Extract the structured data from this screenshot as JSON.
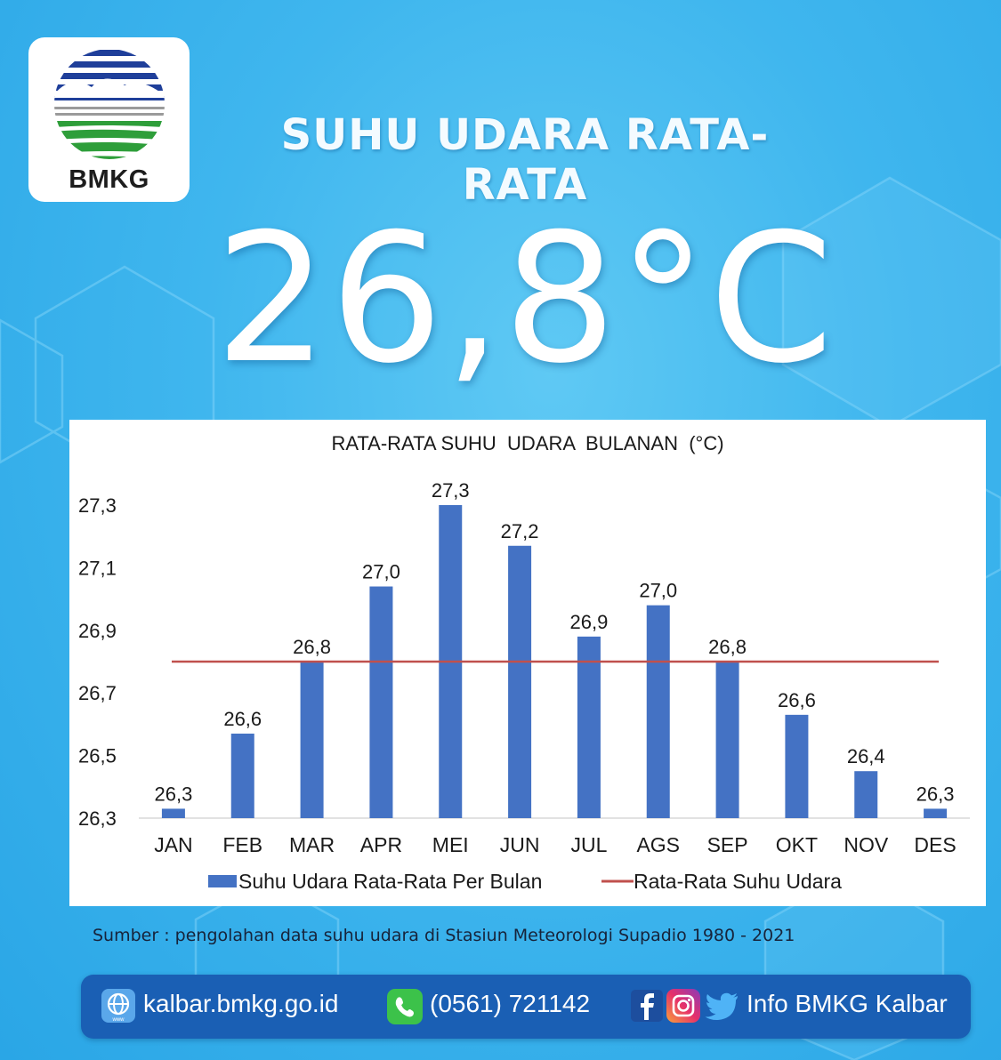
{
  "branding": {
    "logo_text": "BMKG",
    "headline": "SUHU UDARA RATA-RATA",
    "big_value": "26,8°C"
  },
  "source_note": "Sumber : pengolahan data suhu udara di Stasiun Meteorologi Supadio 1980 - 2021",
  "footer": {
    "website": "kalbar.bmkg.go.id",
    "phone": "(0561) 721142",
    "social": "Info BMKG Kalbar",
    "icons": [
      "globe-icon",
      "whatsapp-icon",
      "facebook-icon",
      "instagram-icon",
      "twitter-icon"
    ]
  },
  "colors": {
    "bar": "#4472c4",
    "average_line": "#c0504d",
    "footer_bar": "#1a5fb4"
  },
  "chart_data": {
    "type": "bar",
    "title": "RATA-RATA SUHU  UDARA  BULANAN  (°C)",
    "categories": [
      "JAN",
      "FEB",
      "MAR",
      "APR",
      "MEI",
      "JUN",
      "JUL",
      "AGS",
      "SEP",
      "OKT",
      "NOV",
      "DES"
    ],
    "series": [
      {
        "name": "Suhu Udara Rata-Rata Per Bulan",
        "type": "bar",
        "values": [
          26.33,
          26.57,
          26.8,
          27.04,
          27.3,
          27.17,
          26.88,
          26.98,
          26.8,
          26.63,
          26.45,
          26.33
        ],
        "labels": [
          "26,3",
          "26,6",
          "26,8",
          "27,0",
          "27,3",
          "27,2",
          "26,9",
          "27,0",
          "26,8",
          "26,6",
          "26,4",
          "26,3"
        ]
      },
      {
        "name": "Rata-Rata Suhu Udara",
        "type": "line",
        "value": 26.8
      }
    ],
    "yticks": [
      "27,3",
      "27,1",
      "26,9",
      "26,7",
      "26,5",
      "26,3"
    ],
    "ylim": [
      26.3,
      27.3
    ],
    "legend": "bottom",
    "grid": false
  }
}
